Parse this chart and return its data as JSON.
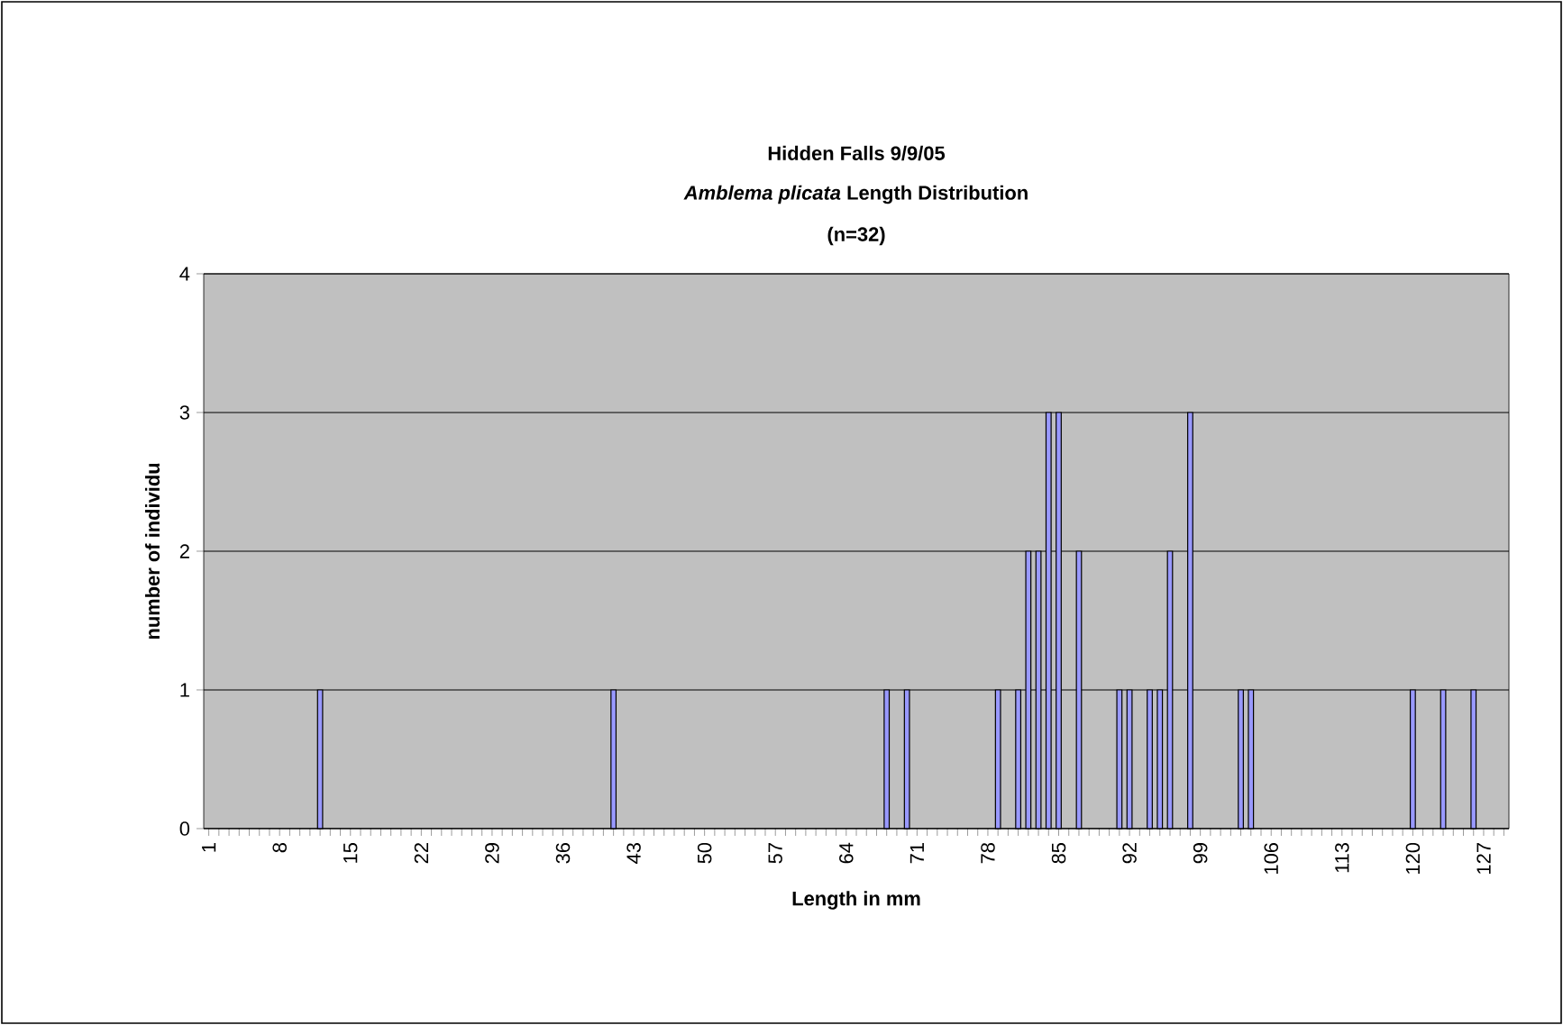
{
  "chart_data": {
    "type": "bar",
    "title": "Hidden Falls 9/9/05",
    "subtitle": "*Amblema plicata* Length Distribution",
    "annotations": [
      "(n=32)"
    ],
    "xlabel": "Length in mm",
    "ylabel": "number of individu",
    "categories": [
      "1",
      null,
      null,
      null,
      null,
      null,
      null,
      "8",
      null,
      null,
      null,
      null,
      null,
      null,
      "15",
      null,
      null,
      null,
      null,
      null,
      null,
      "22",
      null,
      null,
      null,
      null,
      null,
      null,
      "29",
      null,
      null,
      null,
      null,
      null,
      null,
      "36",
      null,
      null,
      null,
      null,
      null,
      null,
      "43",
      null,
      null,
      null,
      null,
      null,
      null,
      "50",
      null,
      null,
      null,
      null,
      null,
      null,
      "57",
      null,
      null,
      null,
      null,
      null,
      null,
      "64",
      null,
      null,
      null,
      null,
      null,
      null,
      "71",
      null,
      null,
      null,
      null,
      null,
      null,
      "78",
      null,
      null,
      null,
      null,
      null,
      null,
      "85",
      null,
      null,
      null,
      null,
      null,
      null,
      "92",
      null,
      null,
      null,
      null,
      null,
      null,
      "99",
      null,
      null,
      null,
      null,
      null,
      null,
      "106",
      null,
      null,
      null,
      null,
      null,
      null,
      "113",
      null,
      null,
      null,
      null,
      null,
      null,
      "120",
      null,
      null,
      null,
      null,
      null,
      null,
      "127",
      null,
      null
    ],
    "values": [
      0,
      0,
      0,
      0,
      0,
      0,
      0,
      0,
      0,
      0,
      0,
      1,
      0,
      0,
      0,
      0,
      0,
      0,
      0,
      0,
      0,
      0,
      0,
      0,
      0,
      0,
      0,
      0,
      0,
      0,
      0,
      0,
      0,
      0,
      0,
      0,
      0,
      0,
      0,
      0,
      1,
      0,
      0,
      0,
      0,
      0,
      0,
      0,
      0,
      0,
      0,
      0,
      0,
      0,
      0,
      0,
      0,
      0,
      0,
      0,
      0,
      0,
      0,
      0,
      0,
      0,
      0,
      1,
      0,
      1,
      0,
      0,
      0,
      0,
      0,
      0,
      0,
      0,
      1,
      0,
      1,
      2,
      2,
      3,
      3,
      0,
      2,
      0,
      0,
      0,
      1,
      1,
      0,
      1,
      1,
      2,
      0,
      3,
      0,
      0,
      0,
      0,
      1,
      1,
      0,
      0,
      0,
      0,
      0,
      0,
      0,
      0,
      0,
      0,
      0,
      0,
      0,
      0,
      0,
      1,
      0,
      0,
      1,
      0,
      0,
      1,
      0,
      0,
      0
    ],
    "color": "#9999ff",
    "ylim": [
      0,
      4
    ],
    "yticks": [
      0,
      1,
      2,
      3,
      4
    ],
    "grid": "y"
  }
}
